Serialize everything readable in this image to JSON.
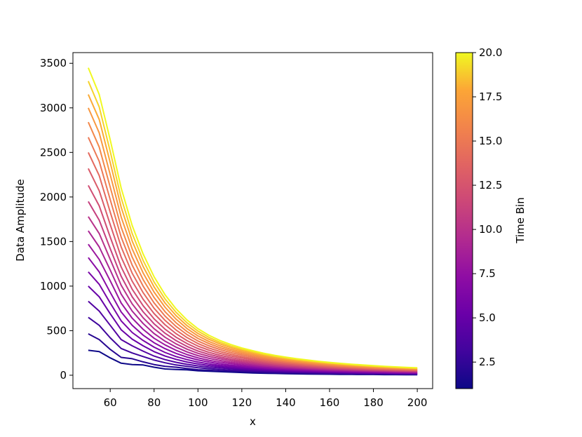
{
  "chart_data": {
    "type": "line",
    "title": "",
    "xlabel": "x",
    "ylabel": "Data Amplitude",
    "xlim": [
      43,
      207
    ],
    "ylim": [
      -150,
      3620
    ],
    "xticks": [
      60,
      80,
      100,
      120,
      140,
      160,
      180,
      200
    ],
    "yticks": [
      0,
      500,
      1000,
      1500,
      2000,
      2500,
      3000,
      3500
    ],
    "grid": false,
    "colormap": "plasma",
    "colorbar": {
      "label": "Time Bin",
      "range": [
        1,
        20
      ],
      "ticks": [
        "2.5",
        "5.0",
        "7.5",
        "10.0",
        "12.5",
        "15.0",
        "17.5",
        "20.0"
      ]
    },
    "x": [
      50,
      55,
      60,
      65,
      70,
      75,
      80,
      85,
      90,
      95,
      100,
      105,
      110,
      115,
      120,
      125,
      130,
      135,
      140,
      145,
      150,
      155,
      160,
      165,
      170,
      175,
      180,
      185,
      190,
      195,
      200
    ],
    "series": [
      {
        "time_bin": 1,
        "values": [
          280,
          265,
          195,
          135,
          120,
          115,
          90,
          70,
          65,
          60,
          50,
          45,
          40,
          35,
          30,
          25,
          22,
          20,
          18,
          15,
          14,
          12,
          11,
          10,
          9,
          8,
          8,
          7,
          7,
          6,
          6
        ]
      },
      {
        "time_bin": 2,
        "values": [
          465,
          400,
          290,
          200,
          185,
          150,
          120,
          100,
          90,
          75,
          62,
          56,
          50,
          45,
          40,
          35,
          31,
          28,
          25,
          22,
          20,
          18,
          16,
          15,
          14,
          13,
          12,
          11,
          10,
          10,
          9
        ]
      },
      {
        "time_bin": 3,
        "values": [
          650,
          560,
          420,
          300,
          250,
          210,
          170,
          140,
          115,
          100,
          84,
          74,
          66,
          58,
          52,
          46,
          41,
          37,
          33,
          30,
          27,
          25,
          23,
          21,
          19,
          18,
          16,
          15,
          14,
          13,
          12
        ]
      },
      {
        "time_bin": 4,
        "values": [
          830,
          720,
          560,
          400,
          330,
          270,
          215,
          175,
          145,
          122,
          105,
          92,
          82,
          73,
          65,
          58,
          52,
          47,
          42,
          38,
          35,
          32,
          29,
          27,
          25,
          23,
          21,
          20,
          18,
          17,
          16
        ]
      },
      {
        "time_bin": 5,
        "values": [
          1000,
          880,
          690,
          510,
          405,
          330,
          265,
          215,
          178,
          148,
          126,
          110,
          97,
          86,
          77,
          69,
          62,
          56,
          51,
          46,
          42,
          39,
          35,
          33,
          30,
          28,
          26,
          24,
          22,
          21,
          20
        ]
      },
      {
        "time_bin": 6,
        "values": [
          1160,
          1020,
          810,
          610,
          480,
          390,
          315,
          255,
          210,
          175,
          148,
          128,
          112,
          100,
          89,
          80,
          72,
          65,
          59,
          54,
          49,
          45,
          41,
          38,
          35,
          33,
          31,
          29,
          27,
          25,
          24
        ]
      },
      {
        "time_bin": 7,
        "values": [
          1320,
          1160,
          930,
          710,
          560,
          450,
          365,
          298,
          245,
          203,
          172,
          148,
          129,
          114,
          102,
          91,
          82,
          74,
          67,
          61,
          56,
          51,
          47,
          44,
          41,
          38,
          36,
          33,
          31,
          29,
          28
        ]
      },
      {
        "time_bin": 8,
        "values": [
          1470,
          1300,
          1060,
          810,
          640,
          515,
          415,
          340,
          280,
          232,
          195,
          168,
          147,
          130,
          116,
          104,
          93,
          84,
          76,
          70,
          64,
          59,
          54,
          50,
          47,
          44,
          41,
          38,
          36,
          34,
          32
        ]
      },
      {
        "time_bin": 9,
        "values": [
          1620,
          1440,
          1180,
          910,
          720,
          580,
          468,
          382,
          315,
          262,
          220,
          190,
          166,
          146,
          130,
          117,
          105,
          95,
          86,
          79,
          72,
          66,
          61,
          57,
          53,
          49,
          46,
          43,
          40,
          38,
          36
        ]
      },
      {
        "time_bin": 10,
        "values": [
          1780,
          1590,
          1300,
          1010,
          800,
          645,
          522,
          426,
          352,
          292,
          246,
          212,
          185,
          163,
          145,
          130,
          117,
          106,
          96,
          88,
          81,
          74,
          68,
          63,
          59,
          55,
          51,
          48,
          45,
          42,
          40
        ]
      },
      {
        "time_bin": 11,
        "values": [
          1950,
          1740,
          1420,
          1110,
          880,
          712,
          577,
          471,
          389,
          323,
          272,
          234,
          204,
          180,
          160,
          144,
          129,
          117,
          106,
          97,
          89,
          82,
          75,
          70,
          65,
          60,
          56,
          53,
          49,
          47,
          44
        ]
      },
      {
        "time_bin": 12,
        "values": [
          2130,
          1900,
          1550,
          1215,
          965,
          780,
          633,
          517,
          427,
          355,
          299,
          257,
          224,
          198,
          176,
          158,
          142,
          128,
          117,
          107,
          98,
          90,
          83,
          77,
          71,
          66,
          62,
          58,
          54,
          51,
          48
        ]
      },
      {
        "time_bin": 13,
        "values": [
          2320,
          2070,
          1690,
          1325,
          1055,
          853,
          692,
          566,
          467,
          388,
          327,
          281,
          245,
          216,
          193,
          173,
          155,
          140,
          128,
          117,
          107,
          98,
          91,
          84,
          78,
          72,
          67,
          63,
          59,
          56,
          53
        ]
      },
      {
        "time_bin": 14,
        "values": [
          2500,
          2240,
          1830,
          1440,
          1145,
          927,
          752,
          615,
          508,
          422,
          355,
          305,
          266,
          235,
          209,
          188,
          169,
          152,
          139,
          127,
          116,
          107,
          98,
          91,
          85,
          79,
          73,
          69,
          64,
          61,
          57
        ]
      },
      {
        "time_bin": 15,
        "values": [
          2670,
          2400,
          1970,
          1550,
          1235,
          1000,
          812,
          664,
          548,
          456,
          384,
          330,
          288,
          254,
          226,
          203,
          182,
          165,
          150,
          137,
          126,
          116,
          107,
          99,
          92,
          85,
          79,
          74,
          70,
          66,
          62
        ]
      },
      {
        "time_bin": 16,
        "values": [
          2840,
          2560,
          2110,
          1660,
          1325,
          1073,
          872,
          713,
          589,
          490,
          413,
          355,
          309,
          273,
          243,
          218,
          196,
          177,
          161,
          147,
          135,
          124,
          115,
          106,
          98,
          91,
          85,
          80,
          75,
          70,
          66
        ]
      },
      {
        "time_bin": 17,
        "values": [
          3000,
          2720,
          2250,
          1775,
          1418,
          1148,
          933,
          763,
          630,
          524,
          441,
          379,
          330,
          291,
          259,
          233,
          209,
          189,
          172,
          157,
          144,
          133,
          123,
          114,
          105,
          98,
          91,
          85,
          80,
          75,
          71
        ]
      },
      {
        "time_bin": 18,
        "values": [
          3150,
          2870,
          2385,
          1885,
          1506,
          1220,
          991,
          810,
          669,
          557,
          469,
          403,
          351,
          310,
          276,
          248,
          223,
          201,
          183,
          167,
          153,
          141,
          130,
          121,
          112,
          104,
          97,
          91,
          85,
          80,
          75
        ]
      },
      {
        "time_bin": 19,
        "values": [
          3300,
          3010,
          2510,
          1990,
          1590,
          1288,
          1047,
          856,
          707,
          588,
          495,
          425,
          370,
          327,
          291,
          261,
          235,
          212,
          193,
          176,
          162,
          149,
          137,
          127,
          118,
          110,
          102,
          96,
          90,
          84,
          79
        ]
      },
      {
        "time_bin": 20,
        "values": [
          3450,
          3150,
          2640,
          2100,
          1680,
          1360,
          1105,
          903,
          746,
          620,
          522,
          448,
          390,
          344,
          306,
          275,
          247,
          223,
          203,
          185,
          170,
          156,
          144,
          133,
          124,
          115,
          107,
          100,
          94,
          88,
          83
        ]
      }
    ]
  }
}
